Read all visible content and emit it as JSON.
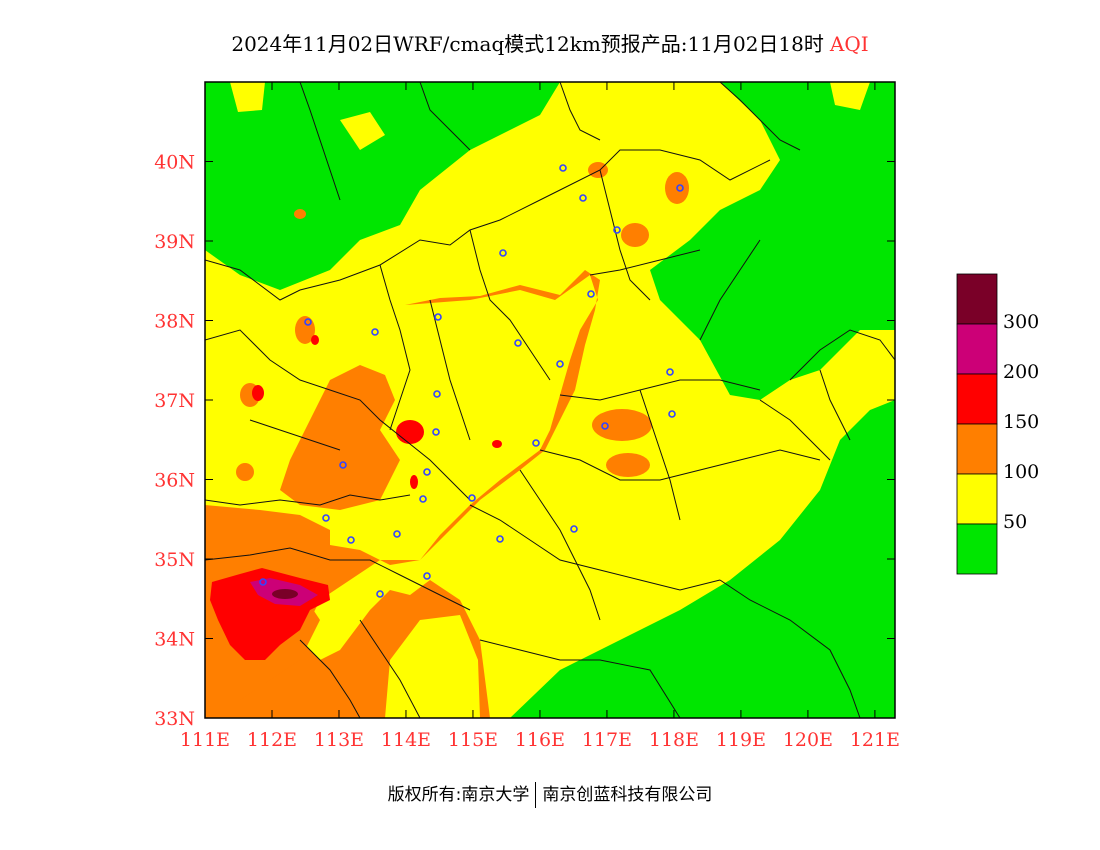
{
  "title": {
    "main": "2024年11月02日WRF/cmaq模式12km预报产品:11月02日18时",
    "variable": "AQI"
  },
  "footer": {
    "copyright": "版权所有:南京大学",
    "company": "南京创蓝科技有限公司"
  },
  "axes": {
    "x_ticks": [
      "111E",
      "112E",
      "113E",
      "114E",
      "115E",
      "116E",
      "117E",
      "118E",
      "119E",
      "120E",
      "121E"
    ],
    "y_ticks": [
      "33N",
      "34N",
      "35N",
      "36N",
      "37N",
      "38N",
      "39N",
      "40N"
    ],
    "lon_range": [
      111,
      121.3
    ],
    "lat_range": [
      33,
      41
    ]
  },
  "legend": {
    "labels": [
      "300",
      "200",
      "150",
      "100",
      "50"
    ],
    "colors": [
      "#7a0028",
      "#cc0077",
      "#ff0000",
      "#ff7f00",
      "#ffff00",
      "#00e600"
    ]
  },
  "colors": {
    "good": "#00e600",
    "moderate": "#ffff00",
    "light": "#ff7f00",
    "medium": "#ff0000",
    "heavy": "#cc0077",
    "severe": "#7a0028",
    "tick_text": "#ff3333",
    "station_marker": "#3344ff"
  }
}
